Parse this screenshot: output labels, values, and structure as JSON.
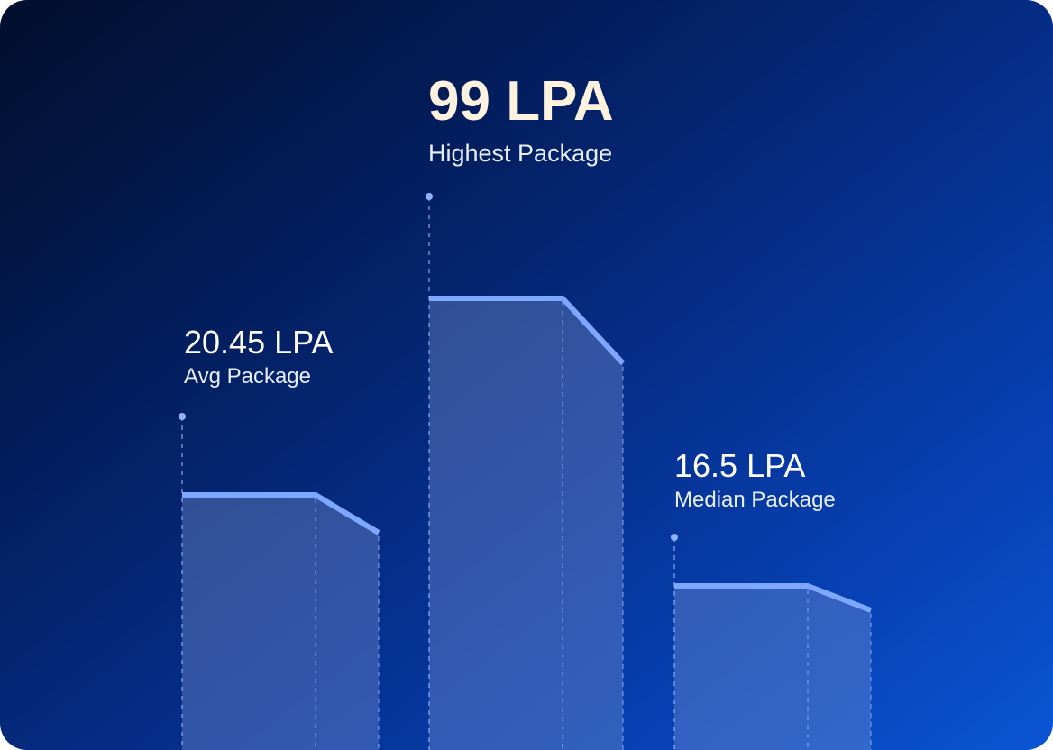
{
  "chart_data": {
    "type": "bar",
    "title": "",
    "xlabel": "",
    "ylabel": "",
    "unit": "LPA",
    "bars": [
      {
        "key": "avg",
        "label": "Avg Package",
        "value_text": "20.45 LPA",
        "value": 20.45
      },
      {
        "key": "highest",
        "label": "Highest Package",
        "value_text": "99 LPA",
        "value": 99
      },
      {
        "key": "median",
        "label": "Median Package",
        "value_text": "16.5 LPA",
        "value": 16.5
      }
    ]
  },
  "colors": {
    "bar_fill": "#7b95d6",
    "bar_top": "#7ea8ff",
    "highlight_text": "#fdf2de"
  }
}
